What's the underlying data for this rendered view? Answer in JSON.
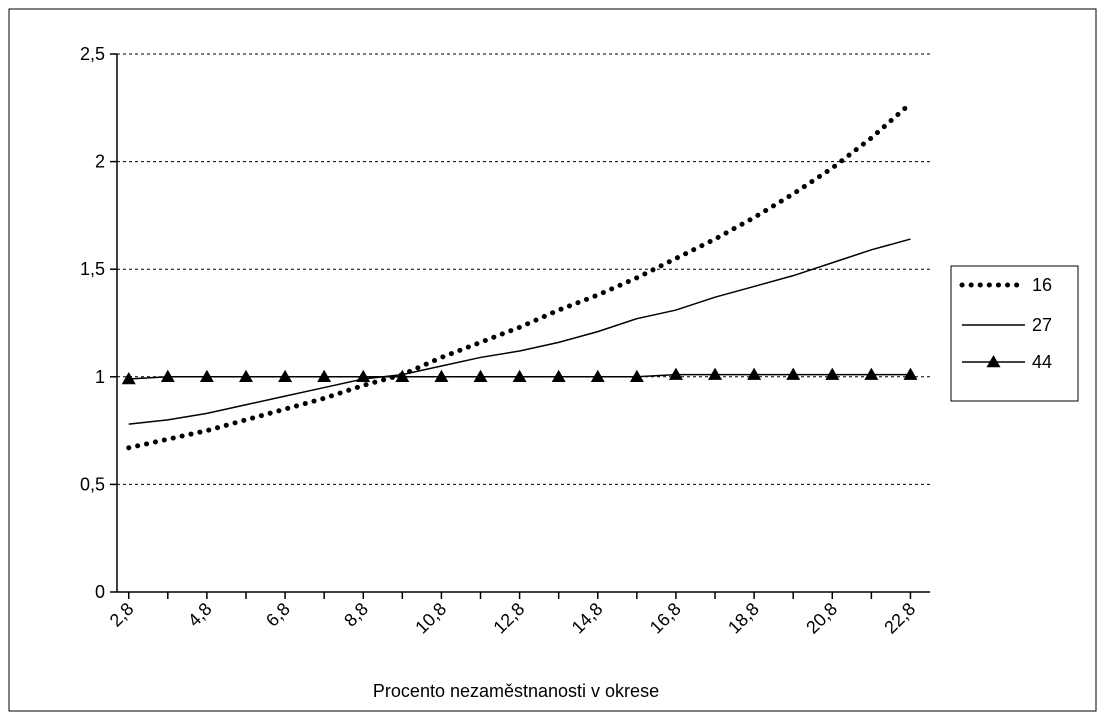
{
  "chart_data": {
    "type": "line",
    "title": "",
    "xlabel": "Procento nezaměstnanosti v okrese",
    "ylabel": "",
    "x": [
      2.8,
      3.8,
      4.8,
      5.8,
      6.8,
      7.8,
      8.8,
      9.8,
      10.8,
      11.8,
      12.8,
      13.8,
      14.8,
      15.8,
      16.8,
      17.8,
      18.8,
      19.8,
      20.8,
      21.8,
      22.8
    ],
    "x_tick_labels": [
      "2,8",
      "4,8",
      "6,8",
      "8,8",
      "10,8",
      "12,8",
      "14,8",
      "16,8",
      "18,8",
      "20,8",
      "22,8"
    ],
    "y_tick_labels": [
      "0",
      "0,5",
      "1",
      "1,5",
      "2",
      "2,5"
    ],
    "ylim": [
      0,
      2.5
    ],
    "y_ticks": [
      0,
      0.5,
      1,
      1.5,
      2,
      2.5
    ],
    "grid": "horizontal-dotted",
    "legend": "right",
    "series": [
      {
        "name": "16",
        "style": "dotted",
        "values": [
          0.67,
          0.71,
          0.75,
          0.8,
          0.85,
          0.9,
          0.96,
          1.01,
          1.09,
          1.16,
          1.23,
          1.31,
          1.38,
          1.46,
          1.55,
          1.64,
          1.74,
          1.85,
          1.97,
          2.11,
          2.27
        ]
      },
      {
        "name": "27",
        "style": "solid",
        "values": [
          0.78,
          0.8,
          0.83,
          0.87,
          0.91,
          0.95,
          0.99,
          1.01,
          1.05,
          1.09,
          1.12,
          1.16,
          1.21,
          1.27,
          1.31,
          1.37,
          1.42,
          1.47,
          1.53,
          1.59,
          1.64
        ]
      },
      {
        "name": "44",
        "style": "solid-triangle",
        "values": [
          0.99,
          1.0,
          1.0,
          1.0,
          1.0,
          1.0,
          1.0,
          1.0,
          1.0,
          1.0,
          1.0,
          1.0,
          1.0,
          1.0,
          1.01,
          1.01,
          1.01,
          1.01,
          1.01,
          1.01,
          1.01
        ]
      }
    ]
  }
}
